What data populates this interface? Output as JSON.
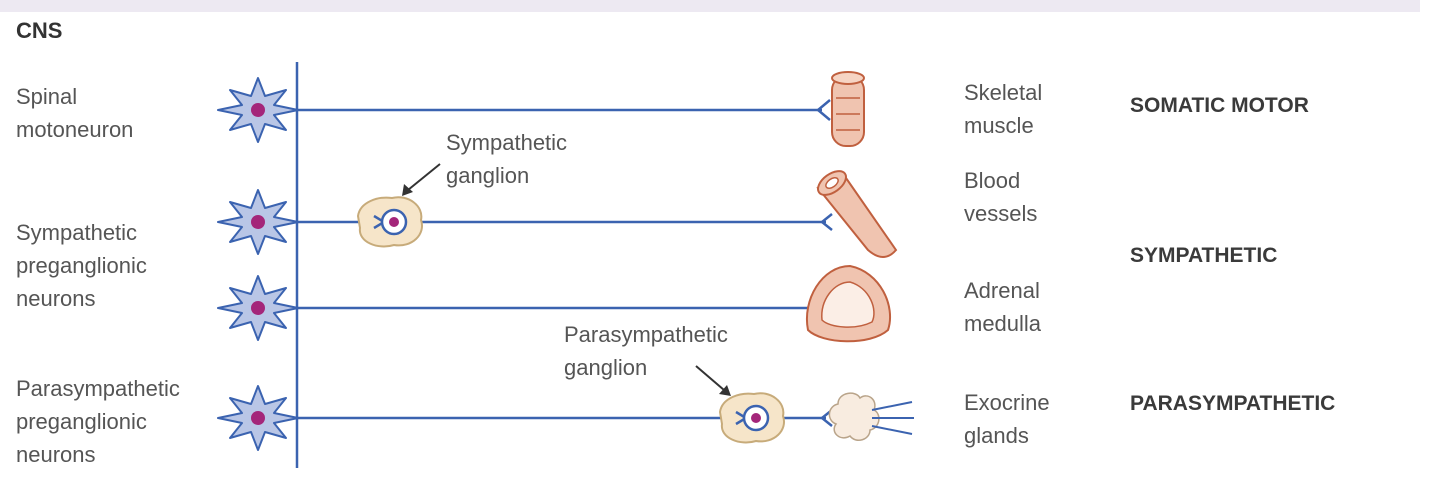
{
  "cns_label": "CNS",
  "neurons": {
    "spinal": [
      "Spinal",
      "motoneuron"
    ],
    "sympathetic": [
      "Sympathetic",
      "preganglionic",
      "neurons"
    ],
    "parasympathetic": [
      "Parasympathetic",
      "preganglionic",
      "neurons"
    ]
  },
  "ganglia": {
    "sympathetic": [
      "Sympathetic",
      "ganglion"
    ],
    "parasympathetic": [
      "Parasympathetic",
      "ganglion"
    ]
  },
  "targets": {
    "skeletal_muscle": [
      "Skeletal",
      "muscle"
    ],
    "blood_vessels": [
      "Blood",
      "vessels"
    ],
    "adrenal_medulla": [
      "Adrenal",
      "medulla"
    ],
    "exocrine_glands": [
      "Exocrine",
      "glands"
    ]
  },
  "categories": {
    "somatic": "SOMATIC MOTOR",
    "sympathetic": "SYMPATHETIC",
    "parasympathetic": "PARASYMPATHETIC"
  },
  "colors": {
    "axon": "#3b63b0",
    "neuron_body": "#b9c6e6",
    "nucleus": "#a4267a",
    "ganglion_fill": "#f6e5c9",
    "ganglion_stroke": "#c7ab7a",
    "tissue_fill": "#f0c4b0",
    "tissue_stroke": "#c0603f"
  }
}
